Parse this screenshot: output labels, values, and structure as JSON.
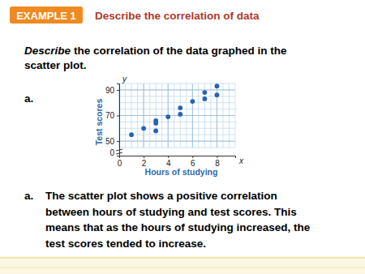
{
  "slide": {
    "example_label": "EXAMPLE 1",
    "heading": "Describe the correlation of data",
    "question_lead": "Describe",
    "question_lines": [
      "the correlation of the data graphed in the",
      "scatter plot."
    ],
    "part_label": "a.",
    "answer_label": "a.",
    "answer_lines": [
      "The scatter plot shows a positive correlation",
      "between hours of studying and test scores. This",
      "means that as the hours of studying increased, the",
      "test scores tended to increase."
    ]
  },
  "chart_data": {
    "type": "scatter",
    "x_label": "Hours of studying",
    "y_label": "Test scores",
    "annotations": [
      "y",
      "x"
    ],
    "x": [
      1,
      2,
      3,
      3,
      3,
      4,
      5,
      5,
      6,
      7,
      7,
      8,
      8
    ],
    "values": [
      55,
      60,
      66,
      64,
      58,
      69,
      71,
      76,
      81,
      83,
      88,
      93,
      86
    ],
    "color": "#2563b0",
    "marker": "circle",
    "xlim": [
      0,
      9.5
    ],
    "ylim": [
      0,
      95
    ],
    "xticks": [
      0,
      2,
      4,
      6,
      8
    ],
    "yticks": [
      0,
      50,
      70,
      90
    ],
    "grid": true
  }
}
